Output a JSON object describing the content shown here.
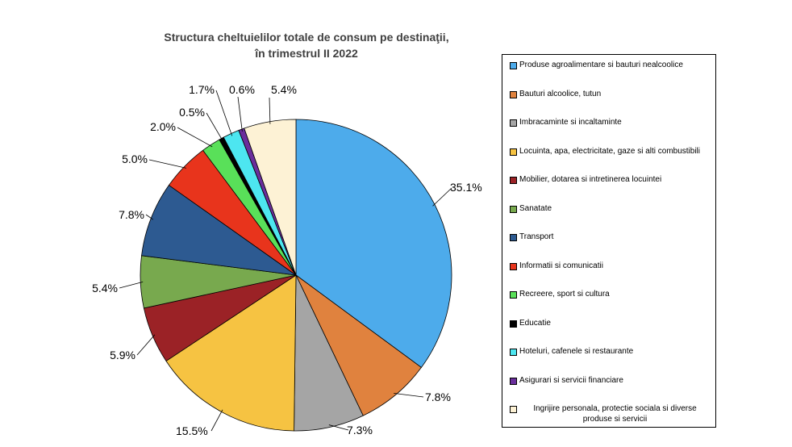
{
  "chart_data": {
    "type": "pie",
    "title_lines": [
      "Structura cheltuielilor totale de consum pe destinaţii,",
      "în trimestrul II 2022"
    ],
    "slices": [
      {
        "name": "Produse agroalimentare si bauturi nealcoolice",
        "value": 35.1,
        "label": "35.1%",
        "color": "#4DABEB"
      },
      {
        "name": "Bauturi alcoolice, tutun",
        "value": 7.8,
        "label": "7.8%",
        "color": "#E0823E"
      },
      {
        "name": "Imbracaminte si incaltaminte",
        "value": 7.3,
        "label": "7.3%",
        "color": "#A5A5A5"
      },
      {
        "name": "Locuinta, apa, electricitate, gaze si alti combustibili",
        "value": 15.5,
        "label": "15.5%",
        "color": "#F6C342"
      },
      {
        "name": "Mobilier, dotarea si intretinerea locuintei",
        "value": 5.9,
        "label": "5.9%",
        "color": "#9B2226"
      },
      {
        "name": "Sanatate",
        "value": 5.4,
        "label": "5.4%",
        "color": "#78A94E"
      },
      {
        "name": "Transport",
        "value": 7.8,
        "label": "7.8%",
        "color": "#2D5A91"
      },
      {
        "name": "Informatii si comunicatii",
        "value": 5.0,
        "label": "5.0%",
        "color": "#E8341C"
      },
      {
        "name": "Recreere, sport si cultura",
        "value": 2.0,
        "label": "2.0%",
        "color": "#59E059"
      },
      {
        "name": "Educatie",
        "value": 0.5,
        "label": "0.5%",
        "color": "#000000"
      },
      {
        "name": "Hoteluri, cafenele si restaurante",
        "value": 1.7,
        "label": "1.7%",
        "color": "#4DE6F0"
      },
      {
        "name": "Asigurari si servicii financiare",
        "value": 0.6,
        "label": "0.6%",
        "color": "#6A2E9C"
      },
      {
        "name": "Ingrijire personala, protectie sociala si diverse produse si servicii",
        "value": 5.4,
        "label": "5.4%",
        "color": "#FDF2D5"
      }
    ],
    "legend": {
      "position": "right"
    }
  }
}
